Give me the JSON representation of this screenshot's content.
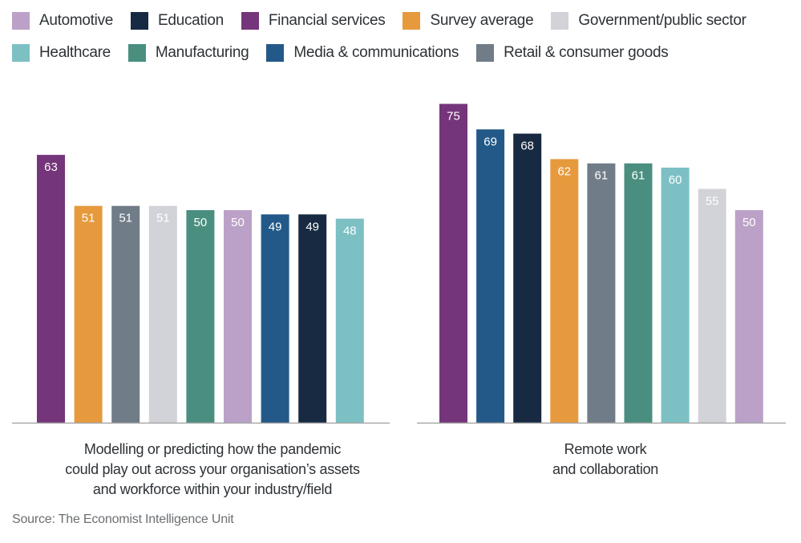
{
  "legend": {
    "rows": [
      [
        {
          "name": "Automotive",
          "color": "#bba1c7"
        },
        {
          "name": "Education",
          "color": "#172a42"
        },
        {
          "name": "Financial services",
          "color": "#74357a"
        },
        {
          "name": "Survey average",
          "color": "#e69a3d"
        },
        {
          "name": "Government/public sector",
          "color": "#d2d3d8"
        }
      ],
      [
        {
          "name": "Healthcare",
          "color": "#7cc0c4"
        },
        {
          "name": "Manufacturing",
          "color": "#4a8e80"
        },
        {
          "name": "Media & communications",
          "color": "#235988"
        },
        {
          "name": "Retail & consumer goods",
          "color": "#717c89"
        }
      ]
    ]
  },
  "chart_data": [
    {
      "type": "bar",
      "title": "Modelling or predicting how the pandemic could play out across your organisation’s assets and workforce within your industry/field",
      "caption_lines": [
        "Modelling or predicting how the pandemic",
        "could play out across your organisation’s assets",
        "and workforce within your industry/field"
      ],
      "categories": [
        "Financial services",
        "Survey average",
        "Retail & consumer goods",
        "Government/public sector",
        "Manufacturing",
        "Automotive",
        "Media & communications",
        "Education",
        "Healthcare"
      ],
      "values": [
        63,
        51,
        51,
        51,
        50,
        50,
        49,
        49,
        48
      ],
      "ylim": [
        0,
        80
      ],
      "grid": false,
      "legend": "top"
    },
    {
      "type": "bar",
      "title": "Remote work and collaboration",
      "caption_lines": [
        "Remote work",
        "and collaboration"
      ],
      "categories": [
        "Financial services",
        "Media & communications",
        "Education",
        "Survey average",
        "Retail & consumer goods",
        "Manufacturing",
        "Healthcare",
        "Government/public sector",
        "Automotive"
      ],
      "values": [
        75,
        69,
        68,
        62,
        61,
        61,
        60,
        55,
        50
      ],
      "ylim": [
        0,
        80
      ],
      "grid": false,
      "legend": "top"
    }
  ],
  "colors": {
    "Automotive": "#bba1c7",
    "Education": "#172a42",
    "Financial services": "#74357a",
    "Survey average": "#e69a3d",
    "Government/public sector": "#d2d3d8",
    "Healthcare": "#7cc0c4",
    "Manufacturing": "#4a8e80",
    "Media & communications": "#235988",
    "Retail & consumer goods": "#717c89",
    "axis": "#a8a8a8"
  },
  "source": "Source: The Economist Intelligence Unit"
}
